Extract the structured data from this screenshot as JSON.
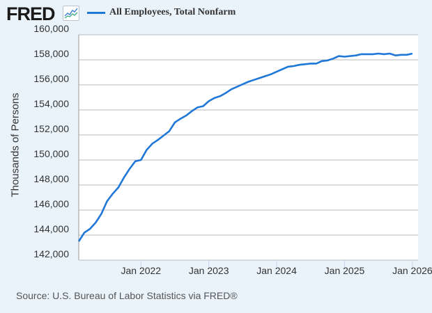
{
  "header": {
    "logo_text": "FRED",
    "logo_icon": "line-chart-icon",
    "legend_label": "All Employees, Total Nonfarm"
  },
  "footer": {
    "source": "Source: U.S. Bureau of Labor Statistics via FRED®"
  },
  "colors": {
    "series": "#1f77d8",
    "background": "#eaf2fa",
    "plot_background": "#ffffff",
    "grid": "#c8c8c8"
  },
  "chart_data": {
    "type": "line",
    "title": "All Employees, Total Nonfarm",
    "xlabel": "",
    "ylabel": "Thousands of Persons",
    "ylim": [
      142000,
      160000
    ],
    "yticks": [
      142000,
      144000,
      146000,
      148000,
      150000,
      152000,
      154000,
      156000,
      158000,
      160000
    ],
    "ytick_labels": [
      "142,000",
      "144,000",
      "146,000",
      "148,000",
      "150,000",
      "152,000",
      "154,000",
      "156,000",
      "158,000",
      "160,000"
    ],
    "xlim": [
      "2021-02",
      "2026-02"
    ],
    "xticks": [
      "2022-01",
      "2023-01",
      "2024-01",
      "2025-01",
      "2026-01"
    ],
    "xtick_labels": [
      "Jan 2022",
      "Jan 2023",
      "Jan 2024",
      "Jan 2025",
      "Jan 2026"
    ],
    "grid": true,
    "legend": "top-left",
    "series": [
      {
        "name": "All Employees, Total Nonfarm",
        "x": [
          "2021-02",
          "2021-03",
          "2021-04",
          "2021-05",
          "2021-06",
          "2021-07",
          "2021-08",
          "2021-09",
          "2021-10",
          "2021-11",
          "2021-12",
          "2022-01",
          "2022-02",
          "2022-03",
          "2022-04",
          "2022-05",
          "2022-06",
          "2022-07",
          "2022-08",
          "2022-09",
          "2022-10",
          "2022-11",
          "2022-12",
          "2023-01",
          "2023-02",
          "2023-03",
          "2023-04",
          "2023-05",
          "2023-06",
          "2023-07",
          "2023-08",
          "2023-09",
          "2023-10",
          "2023-11",
          "2023-12",
          "2024-01",
          "2024-02",
          "2024-03",
          "2024-04",
          "2024-05",
          "2024-06",
          "2024-07",
          "2024-08",
          "2024-09",
          "2024-10",
          "2024-11",
          "2024-12",
          "2025-01",
          "2025-02",
          "2025-03",
          "2025-04",
          "2025-05",
          "2025-06",
          "2025-07",
          "2025-08",
          "2025-09",
          "2025-10",
          "2025-11",
          "2025-12",
          "2026-01"
        ],
        "values": [
          143500,
          144200,
          144500,
          145000,
          145700,
          146700,
          147300,
          147800,
          148600,
          149300,
          149900,
          150000,
          150800,
          151300,
          151600,
          151950,
          152300,
          153000,
          153300,
          153550,
          153900,
          154200,
          154300,
          154700,
          154950,
          155100,
          155350,
          155650,
          155850,
          156050,
          156250,
          156400,
          156550,
          156700,
          156850,
          157050,
          157250,
          157450,
          157500,
          157600,
          157650,
          157700,
          157700,
          157900,
          157950,
          158100,
          158300,
          158250,
          158300,
          158350,
          158450,
          158450,
          158450,
          158500,
          158450,
          158500,
          158350,
          158400,
          158400,
          158500
        ]
      }
    ]
  }
}
